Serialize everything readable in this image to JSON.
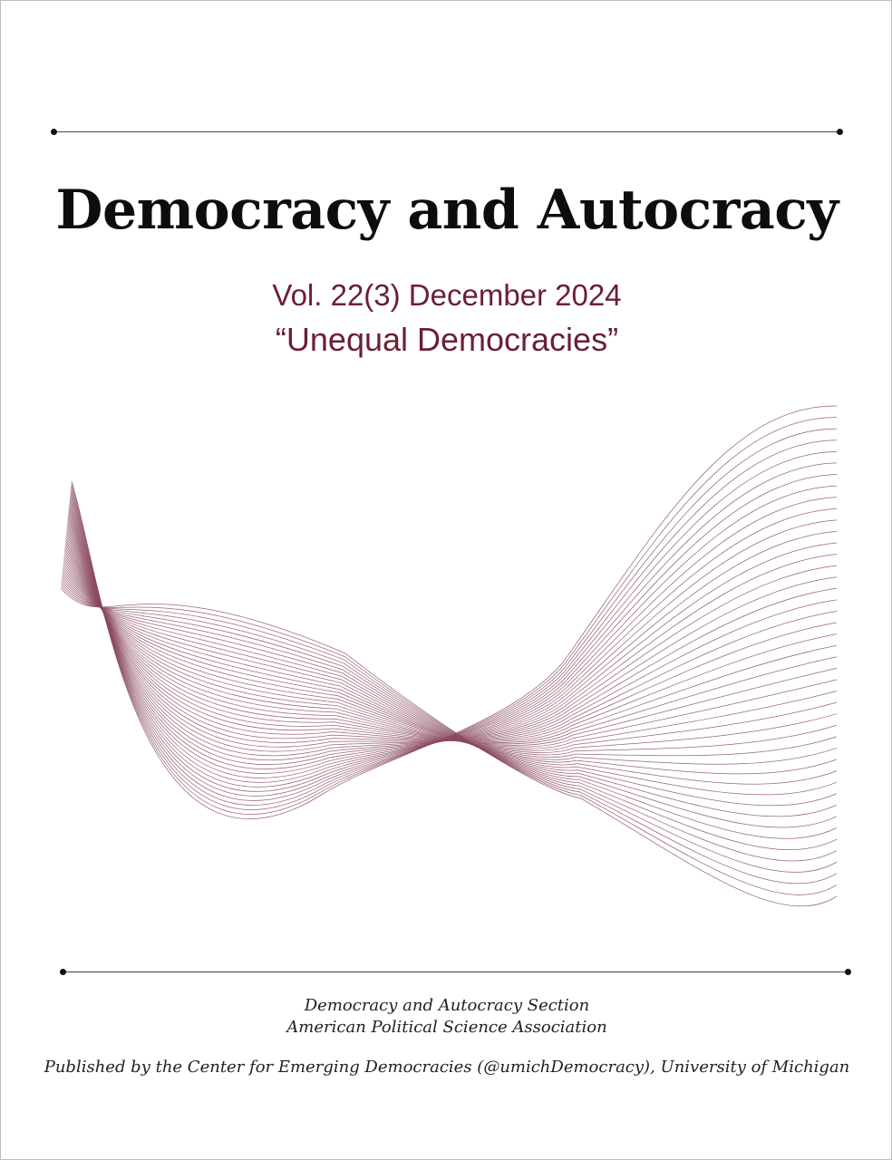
{
  "cover": {
    "title": "Democracy and Autocracy",
    "volume": "Vol. 22(3) December 2024",
    "theme": "“Unequal Democracies”",
    "section_line1": "Democracy and Autocracy Section",
    "section_line2": "American Political Science Association",
    "publisher": "Published by the Center for Emerging Democracies (@umichDemocracy), University of Michigan"
  },
  "colors": {
    "accent": "#6b1f33",
    "wave_lines": "#8a4a5e",
    "title": "#0d0d0d",
    "rule": "#444444"
  }
}
